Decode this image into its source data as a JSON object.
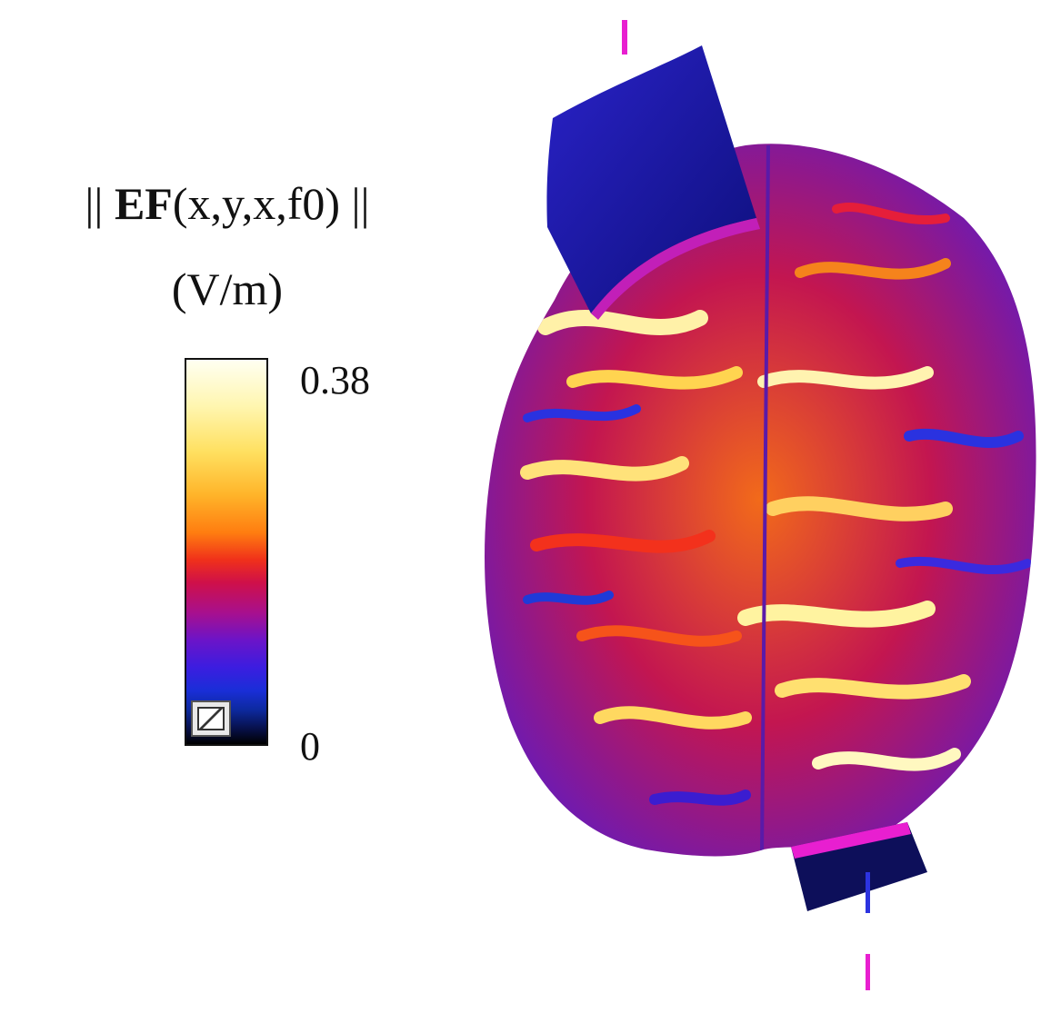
{
  "legend": {
    "title_open": "|| ",
    "title_bold": "EF",
    "title_rest": "(x,y,x,f0) ||",
    "unit": "(V/m)",
    "max_label": "0.38",
    "min_label": "0"
  },
  "colors": {
    "electrode_pad": "#1a17a8",
    "electrode_edge": "#e01fd6",
    "field_low": "#2a2ad8",
    "field_mid": "#e8201f",
    "field_high": "#fffff0"
  }
}
